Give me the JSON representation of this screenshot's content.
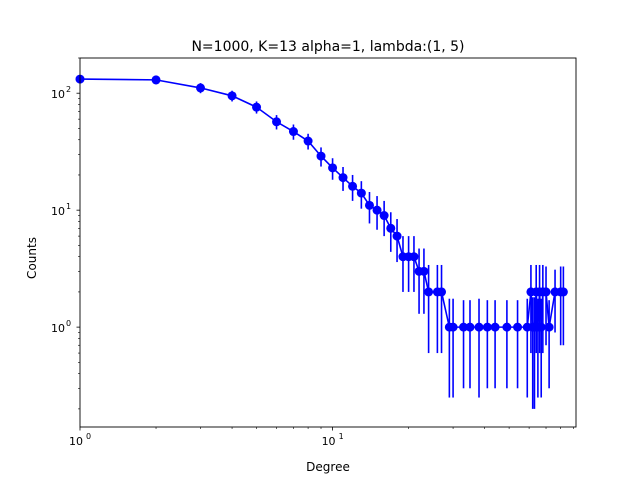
{
  "chart_data": {
    "type": "line",
    "title": "N=1000, K=13 alpha=1, lambda:(1, 5)",
    "xlabel": "Degree",
    "ylabel": "Counts",
    "xscale": "log",
    "yscale": "log",
    "xlim": [
      1,
      92
    ],
    "ylim": [
      0.14,
      200
    ],
    "xticks": [
      {
        "value": 1,
        "base": "10",
        "exp": "0"
      },
      {
        "value": 10,
        "base": "10",
        "exp": "1"
      }
    ],
    "yticks": [
      {
        "value": 1,
        "base": "10",
        "exp": "0"
      },
      {
        "value": 10,
        "base": "10",
        "exp": "1"
      },
      {
        "value": 100,
        "base": "10",
        "exp": "2"
      }
    ],
    "grid": false,
    "legend": "none",
    "color": "#0000ff",
    "series": [
      {
        "x": [
          1,
          2,
          3,
          4,
          5,
          6,
          7,
          8,
          9,
          10,
          11,
          12,
          13,
          14,
          15,
          16,
          17,
          18,
          19,
          20,
          21,
          22,
          23,
          24,
          26,
          27,
          29,
          30,
          33,
          35,
          38,
          41,
          44,
          49,
          54,
          59,
          61,
          62,
          63,
          64,
          65,
          66,
          67,
          68,
          70,
          72,
          76,
          80,
          82
        ],
        "y": [
          132,
          130,
          111,
          95,
          76,
          57,
          47,
          39,
          29,
          23,
          19,
          16,
          14,
          11,
          10,
          9,
          7,
          6,
          4,
          4,
          4,
          3,
          3,
          2,
          2,
          2,
          1,
          1,
          1,
          1,
          1,
          1,
          1,
          1,
          1,
          1,
          2,
          1,
          1,
          2,
          1,
          2,
          1,
          2,
          2,
          1,
          2,
          2,
          2
        ],
        "yerr": [
          11,
          11,
          11,
          10,
          9,
          8,
          7,
          6,
          5.4,
          4.8,
          4.4,
          4,
          3.7,
          3.3,
          3.2,
          3,
          2.6,
          2.4,
          2,
          2,
          2,
          1.7,
          1.7,
          1.4,
          1.4,
          1.4,
          0.75,
          0.75,
          0.7,
          0.7,
          0.75,
          0.7,
          0.7,
          0.7,
          0.7,
          0.75,
          1.4,
          0.8,
          0.8,
          1.4,
          0.75,
          1.4,
          0.75,
          1.4,
          1.3,
          0.7,
          1.1,
          1.3,
          1.3
        ]
      }
    ]
  }
}
